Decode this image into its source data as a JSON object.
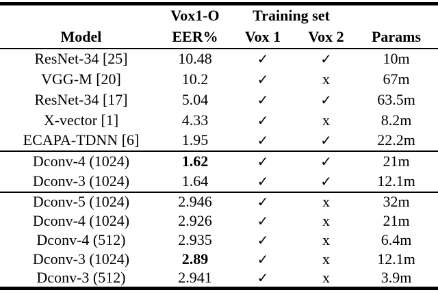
{
  "accent_colors": {
    "text": "#000000",
    "background": "#ffffff",
    "rule": "#000000"
  },
  "table": {
    "header": {
      "model": "Model",
      "eer_line1": "Vox1-O",
      "eer_line2": "EER%",
      "training_set": "Training set",
      "vox1": "Vox 1",
      "vox2": "Vox 2",
      "params": "Params"
    },
    "groups": [
      {
        "rows": [
          {
            "model": "ResNet-34 [25]",
            "eer": "10.48",
            "vox1": "✓",
            "vox2": "✓",
            "params": "10m"
          },
          {
            "model": "VGG-M [20]",
            "eer": "10.2",
            "vox1": "✓",
            "vox2": "x",
            "params": "67m"
          },
          {
            "model": "ResNet-34 [17]",
            "eer": "5.04",
            "vox1": "✓",
            "vox2": "✓",
            "params": "63.5m"
          },
          {
            "model": "X-vector [1]",
            "eer": "4.33",
            "vox1": "✓",
            "vox2": "x",
            "params": "8.2m"
          },
          {
            "model": "ECAPA-TDNN [6]",
            "eer": "1.95",
            "vox1": "✓",
            "vox2": "✓",
            "params": "22.2m"
          }
        ]
      },
      {
        "rows": [
          {
            "model": "Dconv-4 (1024)",
            "eer": "1.62",
            "vox1": "✓",
            "vox2": "✓",
            "params": "21m"
          },
          {
            "model": "Dconv-3 (1024)",
            "eer": "1.64",
            "vox1": "✓",
            "vox2": "✓",
            "params": "12.1m"
          }
        ]
      },
      {
        "rows": [
          {
            "model": "Dconv-5 (1024)",
            "eer": "2.946",
            "vox1": "✓",
            "vox2": "x",
            "params": "32m"
          },
          {
            "model": "Dconv-4 (1024)",
            "eer": "2.926",
            "vox1": "✓",
            "vox2": "x",
            "params": "21m"
          },
          {
            "model": "Dconv-4 (512)",
            "eer": "2.935",
            "vox1": "✓",
            "vox2": "x",
            "params": "6.4m"
          },
          {
            "model": "Dconv-3 (1024)",
            "eer": "2.89",
            "vox1": "✓",
            "vox2": "x",
            "params": "12.1m"
          },
          {
            "model": "Dconv-3 (512)",
            "eer": "2.941",
            "vox1": "✓",
            "vox2": "x",
            "params": "3.9m"
          }
        ]
      }
    ]
  }
}
